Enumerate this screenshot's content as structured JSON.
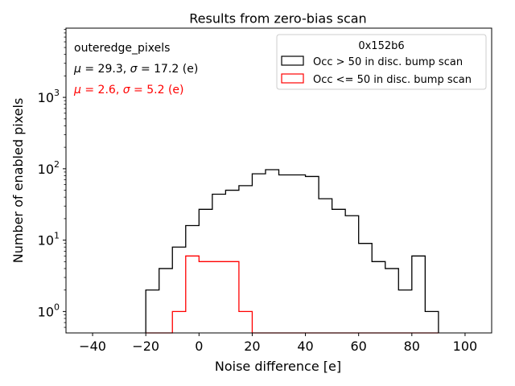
{
  "chart_data": {
    "type": "histogram",
    "title": "Results from zero-bias scan",
    "xlabel": "Noise difference [e]",
    "ylabel": "Number of enabled pixels",
    "xlim": [
      -50,
      110
    ],
    "ylim_log10": [
      -0.3,
      3.97
    ],
    "yscale": "log",
    "xticks": [
      -40,
      -20,
      0,
      20,
      40,
      60,
      80,
      100
    ],
    "xtick_labels": [
      "−40",
      "−20",
      "0",
      "20",
      "40",
      "60",
      "80",
      "100"
    ],
    "yticks": [
      {
        "base": "10",
        "exp": "0",
        "value": 1
      },
      {
        "base": "10",
        "exp": "1",
        "value": 10
      },
      {
        "base": "10",
        "exp": "2",
        "value": 100
      },
      {
        "base": "10",
        "exp": "3",
        "value": 1000
      }
    ],
    "annotations": {
      "name": "outeredge_pixels",
      "stats1": {
        "mu": "μ",
        "mid": " = 29.3, ",
        "sigma": "σ",
        "tail": " = 17.2 (e)"
      },
      "stats2": {
        "mu": "μ",
        "mid": " = 2.6, ",
        "sigma": "σ",
        "tail": " = 5.2 (e)"
      }
    },
    "legend": {
      "title": "0x152b6",
      "position": "top-right",
      "entries": [
        "Occ > 50 in disc. bump scan",
        "Occ <= 50 in disc. bump scan"
      ]
    },
    "bin_edges": [
      -20,
      -15,
      -10,
      -5,
      0,
      5,
      10,
      15,
      20,
      25,
      30,
      35,
      40,
      45,
      50,
      55,
      60,
      65,
      70,
      75,
      80,
      85,
      90
    ],
    "series": [
      {
        "name": "Occ > 50 in disc. bump scan",
        "color": "#000000",
        "values": [
          2,
          4,
          8,
          16,
          27,
          44,
          50,
          58,
          85,
          97,
          82,
          82,
          78,
          38,
          27,
          22,
          9,
          5,
          4,
          2,
          6,
          1
        ]
      },
      {
        "name": "Occ <= 50 in disc. bump scan",
        "color": "#ff0000",
        "values": [
          0,
          0,
          1,
          6,
          5,
          5,
          5,
          1,
          0,
          0,
          0,
          0,
          0,
          0,
          0,
          0,
          0,
          0,
          0,
          0,
          0,
          0
        ]
      }
    ]
  },
  "colors": {
    "series1": "#000000",
    "series2": "#ff0000",
    "frame": "#000000"
  }
}
